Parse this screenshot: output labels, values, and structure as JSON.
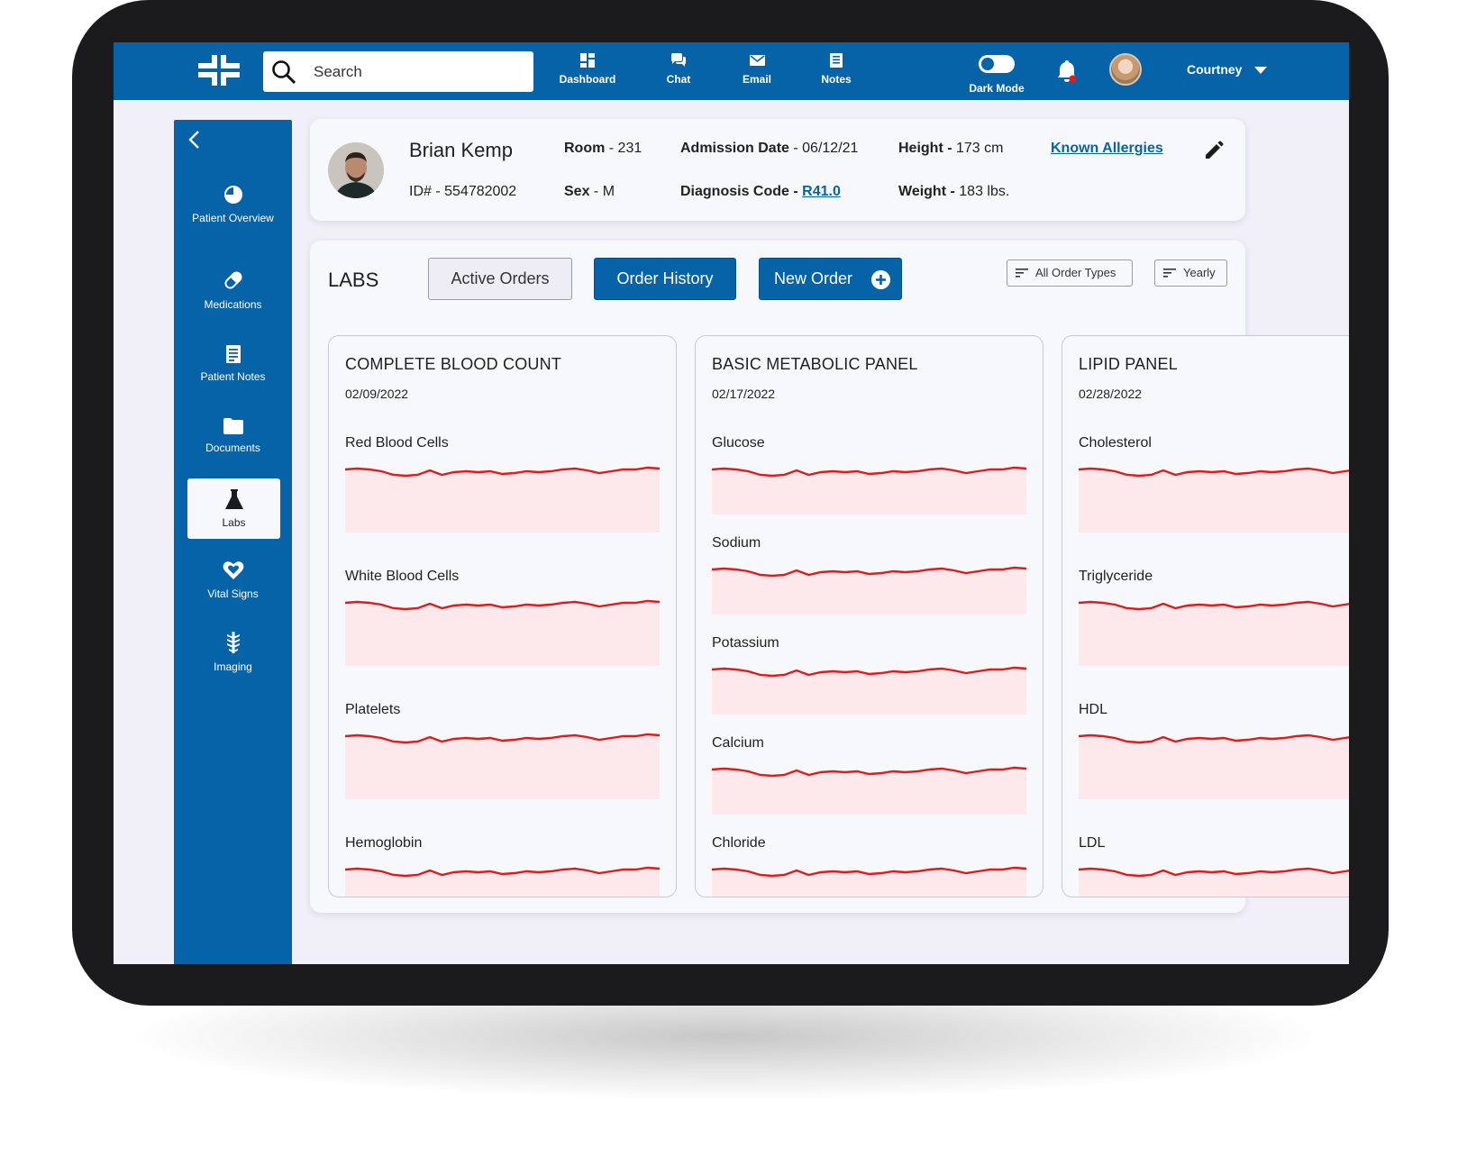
{
  "topbar": {
    "search_placeholder": "Search",
    "nav": [
      {
        "label": "Dashboard",
        "icon": "dashboard-icon"
      },
      {
        "label": "Chat",
        "icon": "chat-icon"
      },
      {
        "label": "Email",
        "icon": "email-icon"
      },
      {
        "label": "Notes",
        "icon": "notes-icon"
      }
    ],
    "dark_mode_label": "Dark Mode",
    "user_name": "Courtney"
  },
  "sidebar": {
    "items": [
      {
        "label": "Patient Overview",
        "icon": "pie-chart-icon"
      },
      {
        "label": "Medications",
        "icon": "pill-icon"
      },
      {
        "label": "Patient Notes",
        "icon": "notes-icon"
      },
      {
        "label": "Documents",
        "icon": "folder-icon"
      },
      {
        "label": "Labs",
        "icon": "flask-icon",
        "active": true
      },
      {
        "label": "Vital Signs",
        "icon": "heart-icon"
      },
      {
        "label": "Imaging",
        "icon": "spine-icon"
      }
    ]
  },
  "patient": {
    "name": "Brian Kemp",
    "room_label": "Room",
    "room_value": "- 231",
    "id_value": "ID# - 554782002",
    "sex_label": "Sex",
    "sex_value": "- M",
    "admission_label": "Admission Date",
    "admission_value": "- 06/12/21",
    "diagnosis_label": "Diagnosis Code -",
    "diagnosis_value": "R41.0",
    "height_label": "Height -",
    "height_value": "173 cm",
    "weight_label": "Weight -",
    "weight_value": "183 lbs.",
    "allergies_link": "Known Allergies"
  },
  "labs": {
    "title": "LABS",
    "tab_active_orders": "Active Orders",
    "tab_order_history": "Order History",
    "tab_new_order": "New Order",
    "filter_types": "All Order Types",
    "filter_period": "Yearly",
    "panels": [
      {
        "title": "COMPLETE BLOOD COUNT",
        "date": "02/09/2022",
        "tests": [
          "Red Blood Cells",
          "White Blood Cells",
          "Platelets",
          "Hemoglobin"
        ]
      },
      {
        "title": "BASIC METABOLIC PANEL",
        "date": "02/17/2022",
        "tests": [
          "Glucose",
          "Sodium",
          "Potassium",
          "Calcium",
          "Chloride"
        ]
      },
      {
        "title": "LIPID PANEL",
        "date": "02/28/2022",
        "tests": [
          "Cholesterol",
          "Triglyceride",
          "HDL",
          "LDL"
        ]
      }
    ],
    "line_color": "#e11a1a",
    "fill_color": "#fde8ec"
  }
}
